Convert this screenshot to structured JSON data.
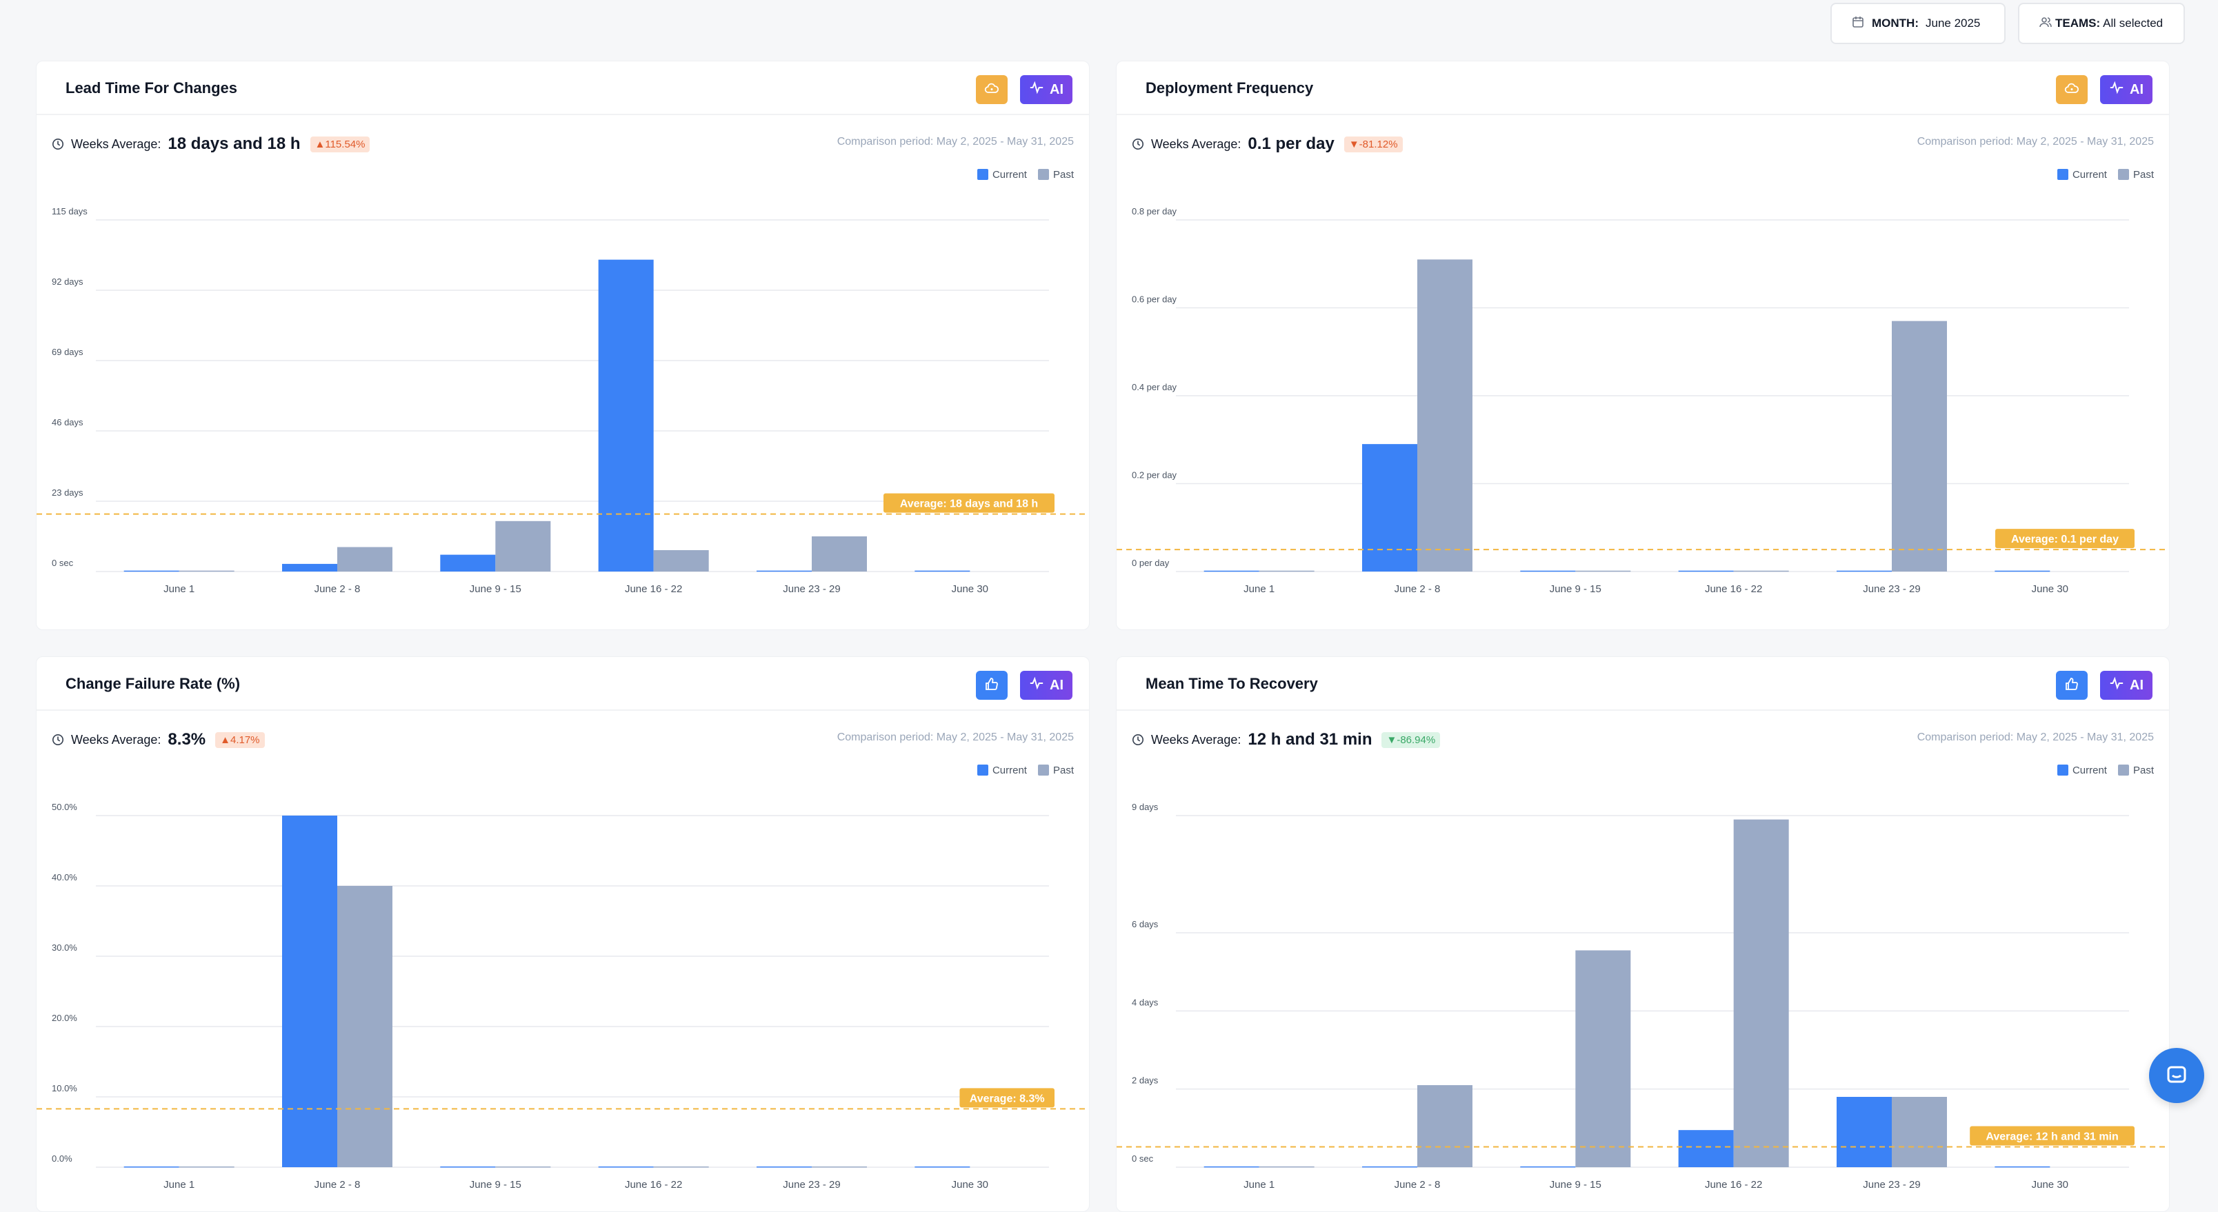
{
  "filters": {
    "month_label": "MONTH:",
    "month_value": "June 2025",
    "teams_label": "TEAMS:",
    "teams_value": "All selected",
    "calendar_icon": "calendar-icon",
    "teams_icon": "users-icon"
  },
  "ai_label": "AI",
  "legend": {
    "current": "Current",
    "past": "Past"
  },
  "colors": {
    "current": "#3b82f6",
    "past": "#9aaac6",
    "average": "#f2b640",
    "ai": "#6a4ae8",
    "gold": "#f2b045",
    "thumb": "#3b82f6"
  },
  "cards": [
    {
      "title": "Lead Time For Changes",
      "avg_label": "Weeks Average:",
      "avg_value": "18 days and 18 h",
      "badge": "▲115.54%",
      "badge_kind": "up",
      "comparison": "Comparison period: May 2, 2025 - May 31, 2025",
      "icon": "cloud-icon",
      "icon_color": "#f2b045",
      "chart_data": {
        "type": "bar",
        "categories": [
          "June 1",
          "June 2 - 8",
          "June 9 - 15",
          "June 16 - 22",
          "June 23 - 29",
          "June 30"
        ],
        "series": [
          {
            "name": "Current",
            "values": [
              0.3,
              2.5,
              5.5,
              102,
              0.3,
              0.3
            ]
          },
          {
            "name": "Past",
            "values": [
              0.3,
              8,
              16.5,
              7,
              11.5,
              null
            ]
          }
        ],
        "ylim": [
          0,
          115
        ],
        "y_ticks": [
          0,
          23,
          46,
          69,
          92,
          115
        ],
        "y_tick_labels": [
          "0 sec",
          "23 days",
          "46 days",
          "69 days",
          "92 days",
          "115 days"
        ],
        "average": 18.8,
        "average_label": "Average: 18 days and 18 h"
      }
    },
    {
      "title": "Deployment Frequency",
      "avg_label": "Weeks Average:",
      "avg_value": "0.1 per day",
      "badge": "▼-81.12%",
      "badge_kind": "down",
      "comparison": "Comparison period: May 2, 2025 - May 31, 2025",
      "icon": "cloud-icon",
      "icon_color": "#f2b045",
      "chart_data": {
        "type": "bar",
        "categories": [
          "June 1",
          "June 2 - 8",
          "June 9 - 15",
          "June 16 - 22",
          "June 23 - 29",
          "June 30"
        ],
        "series": [
          {
            "name": "Current",
            "values": [
              0.002,
              0.29,
              0.002,
              0.002,
              0.002,
              0.002
            ]
          },
          {
            "name": "Past",
            "values": [
              0.002,
              0.71,
              0.002,
              0.002,
              0.57,
              null
            ]
          }
        ],
        "ylim": [
          0,
          0.8
        ],
        "y_ticks": [
          0,
          0.2,
          0.4,
          0.6,
          0.8
        ],
        "y_tick_labels": [
          "0 per day",
          "0.2 per day",
          "0.4 per day",
          "0.6 per day",
          "0.8 per day"
        ],
        "average": 0.05,
        "average_label": "Average: 0.1 per day"
      }
    },
    {
      "title": "Change Failure Rate (%)",
      "avg_label": "Weeks Average:",
      "avg_value": "8.3%",
      "badge": "▲4.17%",
      "badge_kind": "up",
      "comparison": "Comparison period: May 2, 2025 - May 31, 2025",
      "icon": "thumbs-up-icon",
      "icon_color": "#3b82f6",
      "chart_data": {
        "type": "bar",
        "categories": [
          "June 1",
          "June 2 - 8",
          "June 9 - 15",
          "June 16 - 22",
          "June 23 - 29",
          "June 30"
        ],
        "series": [
          {
            "name": "Current",
            "values": [
              0.1,
              50,
              0.1,
              0.1,
              0.1,
              0.1
            ]
          },
          {
            "name": "Past",
            "values": [
              0.1,
              40,
              0.1,
              0.1,
              0.1,
              null
            ]
          }
        ],
        "ylim": [
          0,
          50
        ],
        "y_ticks": [
          0,
          10,
          20,
          30,
          40,
          50
        ],
        "y_tick_labels": [
          "0.0%",
          "10.0%",
          "20.0%",
          "30.0%",
          "40.0%",
          "50.0%"
        ],
        "average": 8.3,
        "average_label": "Average: 8.3%"
      }
    },
    {
      "title": "Mean Time To Recovery",
      "avg_label": "Weeks Average:",
      "avg_value": "12 h and 31 min",
      "badge": "▼-86.94%",
      "badge_kind": "good",
      "comparison": "Comparison period: May 2, 2025 - May 31, 2025",
      "icon": "thumbs-up-icon",
      "icon_color": "#3b82f6",
      "chart_data": {
        "type": "bar",
        "categories": [
          "June 1",
          "June 2 - 8",
          "June 9 - 15",
          "June 16 - 22",
          "June 23 - 29",
          "June 30"
        ],
        "series": [
          {
            "name": "Current",
            "values": [
              0.02,
              0.02,
              0.02,
              0.95,
              1.8,
              0.02
            ]
          },
          {
            "name": "Past",
            "values": [
              0.02,
              2.1,
              5.55,
              8.9,
              1.8,
              null
            ]
          }
        ],
        "ylim": [
          0,
          9
        ],
        "y_ticks": [
          0,
          2,
          4,
          6,
          9
        ],
        "y_tick_labels": [
          "0 sec",
          "2 days",
          "4 days",
          "6 days",
          "9 days"
        ],
        "average": 0.52,
        "average_label": "Average: 12 h and 31 min"
      }
    }
  ]
}
